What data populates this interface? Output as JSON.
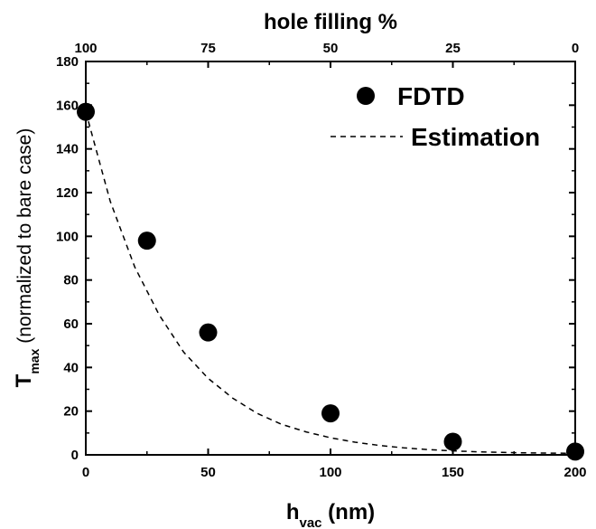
{
  "chart_data": {
    "type": "scatter",
    "xlabel": {
      "main": "h",
      "sub": "vac",
      "rest": " (nm)"
    },
    "x2label": "hole filling %",
    "ylabel": {
      "main": "T",
      "sub": "max",
      "rest": " (normalized to bare case)"
    },
    "xlim": [
      0,
      200
    ],
    "ylim": [
      0,
      180
    ],
    "x_ticks": [
      0,
      50,
      100,
      150,
      200
    ],
    "y_ticks": [
      0,
      20,
      40,
      60,
      80,
      100,
      120,
      140,
      160,
      180
    ],
    "x2_ticks": [
      {
        "x": 0,
        "label": "100"
      },
      {
        "x": 50,
        "label": "75"
      },
      {
        "x": 100,
        "label": "50"
      },
      {
        "x": 150,
        "label": "25"
      },
      {
        "x": 200,
        "label": "0"
      }
    ],
    "legend_position": "top-right",
    "series": [
      {
        "name": "FDTD",
        "kind": "points",
        "x": [
          0,
          25,
          50,
          100,
          150,
          200
        ],
        "y": [
          157,
          98,
          56,
          19,
          6,
          1.5
        ]
      },
      {
        "name": "Estimation",
        "kind": "dashed-line",
        "x": [
          0,
          10,
          20,
          30,
          40,
          50,
          60,
          70,
          80,
          90,
          100,
          110,
          120,
          130,
          140,
          150,
          160,
          170,
          180,
          190,
          200
        ],
        "y": [
          157,
          116,
          86,
          64,
          47,
          35,
          26,
          19,
          14,
          10.5,
          7.8,
          5.8,
          4.3,
          3.2,
          2.4,
          1.8,
          1.4,
          1.1,
          0.9,
          0.8,
          0.7
        ]
      }
    ]
  }
}
